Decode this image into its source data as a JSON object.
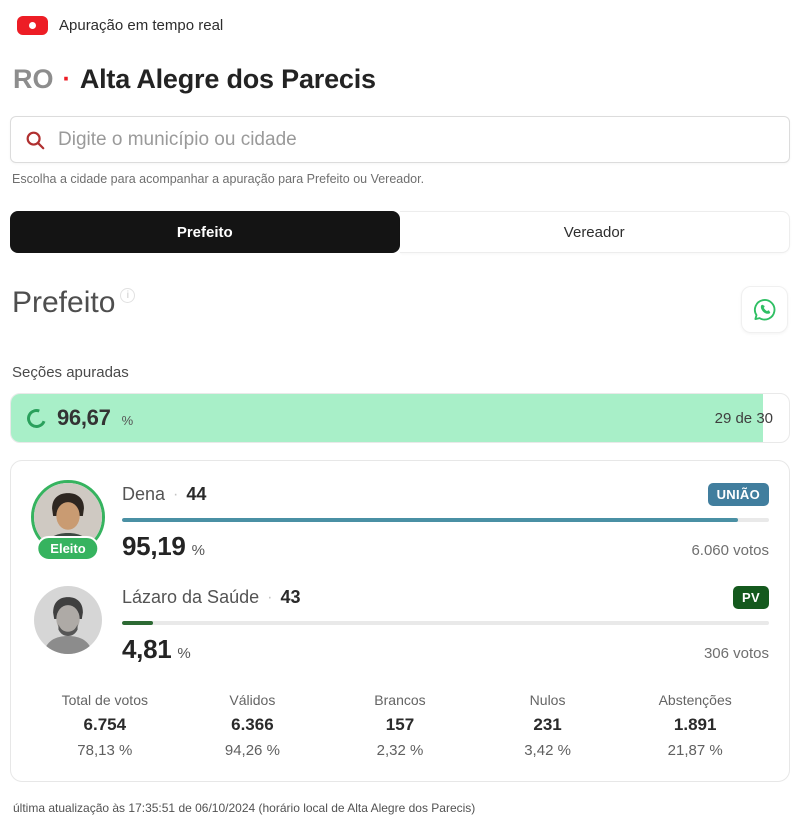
{
  "header": {
    "live_label": "Apuração em tempo real",
    "state": "RO",
    "city": "Alta Alegre dos Parecis"
  },
  "search": {
    "placeholder": "Digite o município ou cidade",
    "helper": "Escolha a cidade para acompanhar a apuração para Prefeito ou Vereador."
  },
  "tabs": [
    {
      "label": "Prefeito",
      "active": true
    },
    {
      "label": "Vereador",
      "active": false
    }
  ],
  "section": {
    "title": "Prefeito"
  },
  "sections_counted": {
    "label": "Seções apuradas",
    "percent_display": "96,67",
    "percent_value": 96.67,
    "count": "29 de 30"
  },
  "candidates": [
    {
      "name": "Dena",
      "number": "44",
      "party": "UNIÃO",
      "party_color": "#417e9e",
      "bar_color": "#4a90a4",
      "percent_display": "95,19",
      "percent_value": 95.19,
      "votes": "6.060 votos",
      "status": "Eleito"
    },
    {
      "name": "Lázaro da Saúde",
      "number": "43",
      "party": "PV",
      "party_color": "#14591d",
      "bar_color": "#2d6a34",
      "percent_display": "4,81",
      "percent_value": 4.81,
      "votes": "306 votos",
      "status": ""
    }
  ],
  "stats": [
    {
      "label": "Total de votos",
      "value": "6.754",
      "percent": "78,13 %"
    },
    {
      "label": "Válidos",
      "value": "6.366",
      "percent": "94,26 %"
    },
    {
      "label": "Brancos",
      "value": "157",
      "percent": "2,32 %"
    },
    {
      "label": "Nulos",
      "value": "231",
      "percent": "3,42 %"
    },
    {
      "label": "Abstenções",
      "value": "1.891",
      "percent": "21,87 %"
    }
  ],
  "footer": {
    "last_update": "última atualização às 17:35:51 de 06/10/2024 (horário local de Alta Alegre dos Parecis)"
  },
  "ui": {
    "dot": "·",
    "percent_sign": "%",
    "info_glyph": "i"
  },
  "colors": {
    "live_red": "#ed1d25",
    "search_icon_red": "#b03030",
    "progress_green": "#a8efc8",
    "spinner_green": "#2aa05c",
    "eleito_green": "#36b35f",
    "whatsapp_green": "#2fbf63",
    "active_tab_black": "#141414"
  }
}
